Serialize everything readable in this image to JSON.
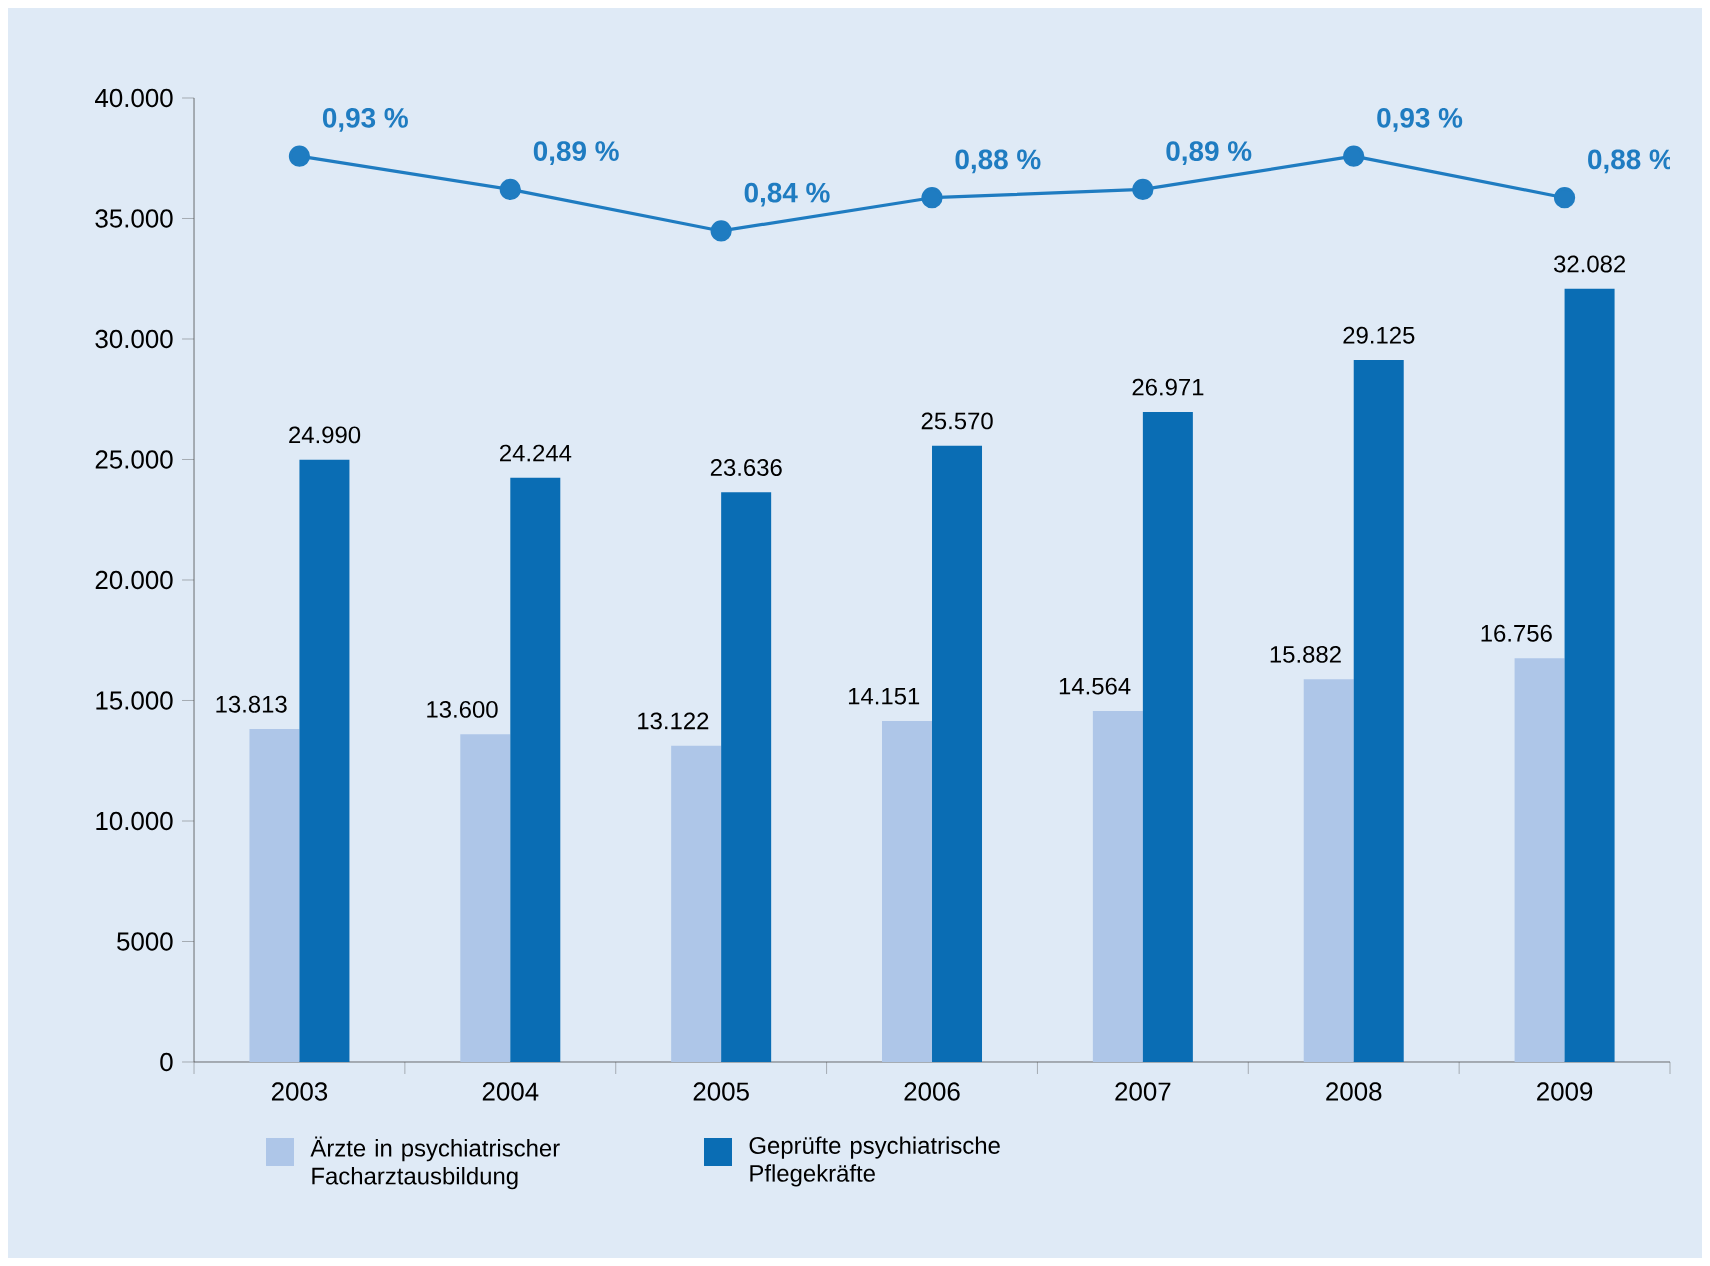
{
  "chart_data": {
    "type": "bar",
    "categories": [
      "2003",
      "2004",
      "2005",
      "2006",
      "2007",
      "2008",
      "2009"
    ],
    "series": [
      {
        "name": "Ärzte in psychiatrischer Facharztausbildung",
        "color": "#aec6e8",
        "values": [
          13813,
          13600,
          13122,
          14151,
          14564,
          15882,
          16756
        ],
        "value_labels": [
          "13.813",
          "13.600",
          "13.122",
          "14.151",
          "14.564",
          "15.882",
          "16.756"
        ]
      },
      {
        "name": "Geprüfte psychiatrische Pflegekräfte",
        "color": "#0a6db4",
        "values": [
          24990,
          24244,
          23636,
          25570,
          26971,
          29125,
          32082
        ],
        "value_labels": [
          "24.990",
          "24.244",
          "23.636",
          "25.570",
          "26.971",
          "29.125",
          "32.082"
        ]
      },
      {
        "type": "line",
        "axis": "y2",
        "color": "#1f7cc1",
        "marker": "circle",
        "values": [
          0.93,
          0.89,
          0.84,
          0.88,
          0.89,
          0.93,
          0.88
        ],
        "value_labels": [
          "0,93 %",
          "0,89 %",
          "0,84 %",
          "0,88 %",
          "0,89 %",
          "0,93 %",
          "0,88 %"
        ]
      }
    ],
    "ylim": [
      0,
      40000
    ],
    "yticks": [
      0,
      5000,
      {
        "value": 10000,
        "label": "10.000"
      },
      {
        "value": 15000,
        "label": "15.000"
      },
      {
        "value": 20000,
        "label": "20.000"
      },
      {
        "value": 25000,
        "label": "25.000"
      },
      {
        "value": 30000,
        "label": "30.000"
      },
      {
        "value": 35000,
        "label": "35.000"
      },
      {
        "value": 40000,
        "label": "40.000"
      }
    ],
    "y2lim": [
      -0.16,
      1.0
    ],
    "legend": "bottom",
    "grid": false
  }
}
